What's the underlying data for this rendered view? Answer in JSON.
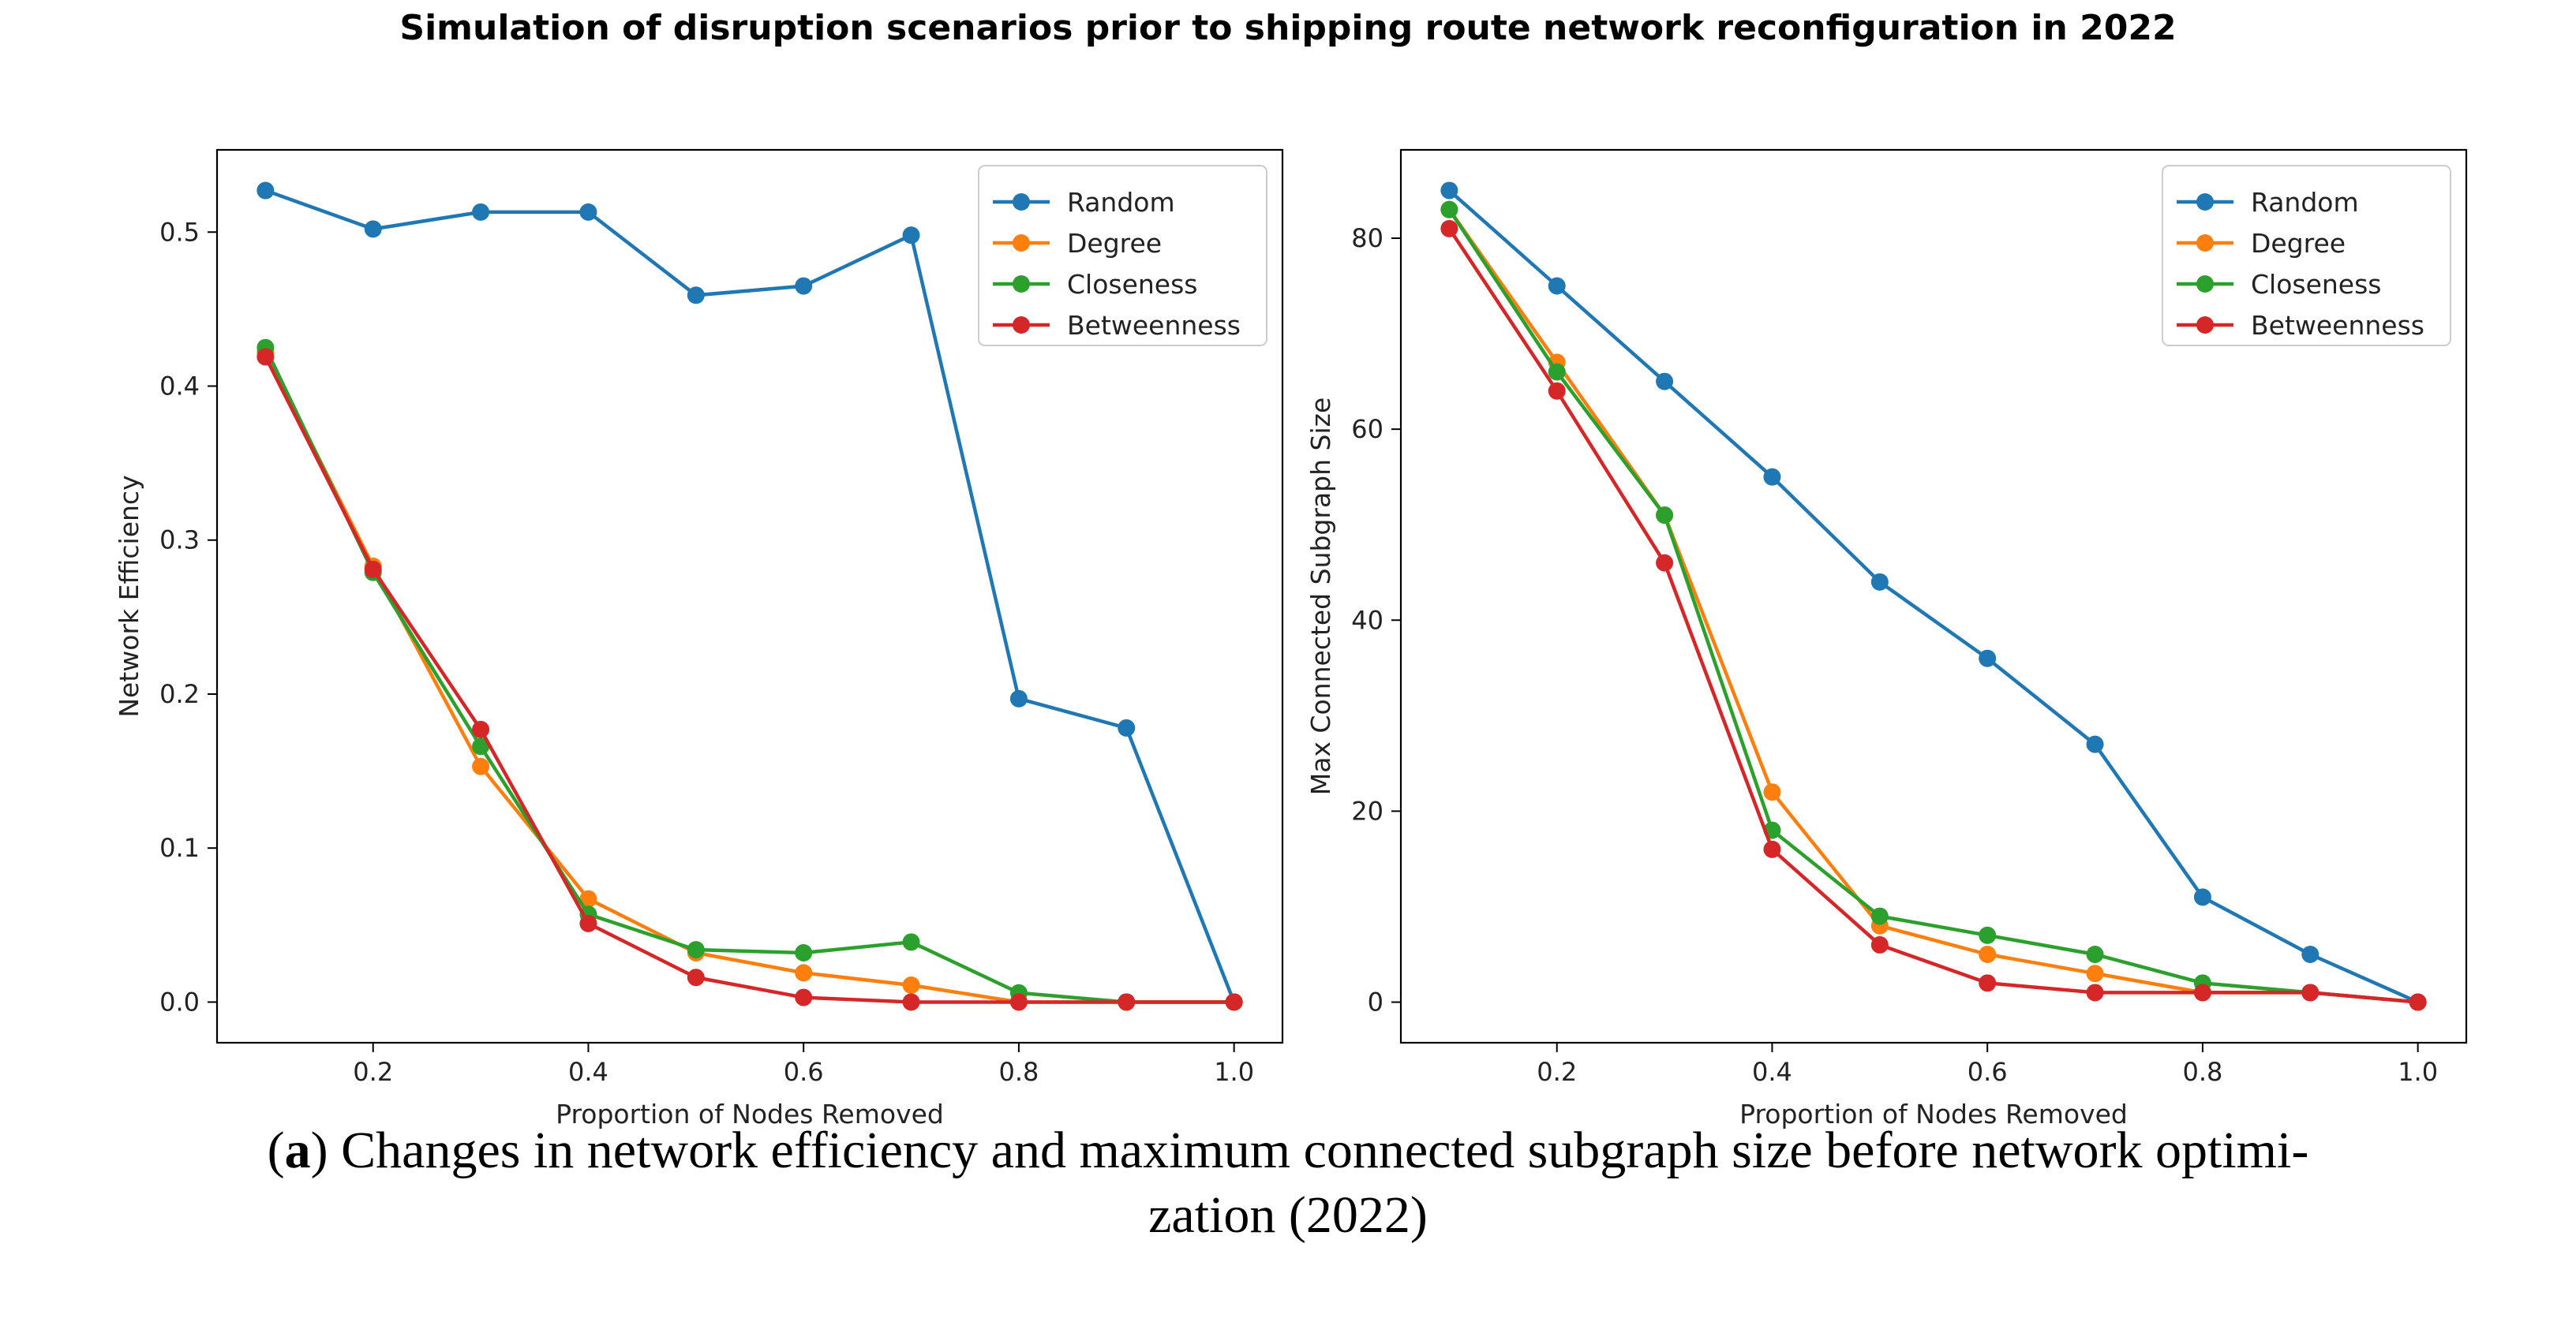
{
  "figure_title": "Simulation of disruption scenarios prior to shipping route network reconfiguration in 2022",
  "caption": {
    "label": "a",
    "text_line1": "Changes in network efficiency and maximum connected subgraph size before network optimi-",
    "text_line2": "zation (2022)"
  },
  "colors": {
    "Random": "#1f77b4",
    "Degree": "#ff7f0e",
    "Closeness": "#2ca02c",
    "Betweenness": "#d62728"
  },
  "chart_data": [
    {
      "type": "line",
      "title": "",
      "xlabel": "Proportion of Nodes Removed",
      "ylabel": "Network Efficiency",
      "x": [
        0.1,
        0.2,
        0.3,
        0.4,
        0.5,
        0.6,
        0.7,
        0.8,
        0.9,
        1.0
      ],
      "xlim": [
        0.055,
        1.045
      ],
      "ylim": [
        -0.0264,
        0.5534
      ],
      "xticks": [
        0.2,
        0.4,
        0.6,
        0.8,
        1.0
      ],
      "xtick_labels": [
        "0.2",
        "0.4",
        "0.6",
        "0.8",
        "1.0"
      ],
      "yticks": [
        0.0,
        0.1,
        0.2,
        0.3,
        0.4,
        0.5
      ],
      "ytick_labels": [
        "0.0",
        "0.1",
        "0.2",
        "0.3",
        "0.4",
        "0.5"
      ],
      "legend": "top-right",
      "grid": false,
      "series": [
        {
          "name": "Random",
          "values": [
            0.527,
            0.502,
            0.513,
            0.513,
            0.459,
            0.465,
            0.498,
            0.197,
            0.178,
            0.0
          ]
        },
        {
          "name": "Degree",
          "values": [
            0.422,
            0.283,
            0.153,
            0.067,
            0.032,
            0.019,
            0.011,
            0.0,
            0.0,
            0.0
          ]
        },
        {
          "name": "Closeness",
          "values": [
            0.425,
            0.279,
            0.166,
            0.057,
            0.034,
            0.032,
            0.039,
            0.006,
            0.0,
            0.0
          ]
        },
        {
          "name": "Betweenness",
          "values": [
            0.419,
            0.281,
            0.177,
            0.051,
            0.016,
            0.003,
            0.0,
            0.0,
            0.0,
            0.0
          ]
        }
      ]
    },
    {
      "type": "line",
      "title": "",
      "xlabel": "Proportion of Nodes Removed",
      "ylabel": "Max Connected Subgraph Size",
      "x": [
        0.1,
        0.2,
        0.3,
        0.4,
        0.5,
        0.6,
        0.7,
        0.8,
        0.9,
        1.0
      ],
      "xlim": [
        0.055,
        1.045
      ],
      "ylim": [
        -4.25,
        89.25
      ],
      "xticks": [
        0.2,
        0.4,
        0.6,
        0.8,
        1.0
      ],
      "xtick_labels": [
        "0.2",
        "0.4",
        "0.6",
        "0.8",
        "1.0"
      ],
      "yticks": [
        0,
        20,
        40,
        60,
        80
      ],
      "ytick_labels": [
        "0",
        "20",
        "40",
        "60",
        "80"
      ],
      "legend": "top-right",
      "grid": false,
      "series": [
        {
          "name": "Random",
          "values": [
            85,
            75,
            65,
            55,
            44,
            36,
            27,
            11,
            5,
            0
          ]
        },
        {
          "name": "Degree",
          "values": [
            83,
            67,
            51,
            22,
            8,
            5,
            3,
            1,
            1,
            0
          ]
        },
        {
          "name": "Closeness",
          "values": [
            83,
            66,
            51,
            18,
            9,
            7,
            5,
            2,
            1,
            0
          ]
        },
        {
          "name": "Betweenness",
          "values": [
            81,
            64,
            46,
            16,
            6,
            2,
            1,
            1,
            1,
            0
          ]
        }
      ]
    }
  ]
}
